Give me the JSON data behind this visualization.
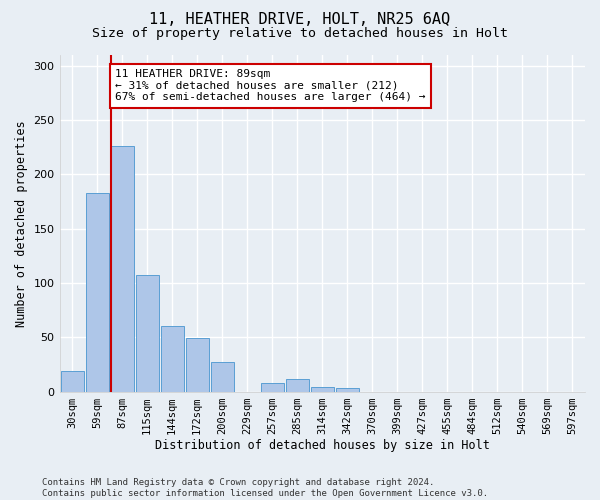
{
  "title1": "11, HEATHER DRIVE, HOLT, NR25 6AQ",
  "title2": "Size of property relative to detached houses in Holt",
  "xlabel": "Distribution of detached houses by size in Holt",
  "ylabel": "Number of detached properties",
  "bar_labels": [
    "30sqm",
    "59sqm",
    "87sqm",
    "115sqm",
    "144sqm",
    "172sqm",
    "200sqm",
    "229sqm",
    "257sqm",
    "285sqm",
    "314sqm",
    "342sqm",
    "370sqm",
    "399sqm",
    "427sqm",
    "455sqm",
    "484sqm",
    "512sqm",
    "540sqm",
    "569sqm",
    "597sqm"
  ],
  "bar_values": [
    19,
    183,
    226,
    107,
    60,
    49,
    27,
    0,
    8,
    12,
    4,
    3,
    0,
    0,
    0,
    0,
    0,
    0,
    0,
    0,
    0
  ],
  "bar_color": "#aec6e8",
  "bar_edge_color": "#5a9fd4",
  "vline_color": "#cc0000",
  "vline_pos": 1.575,
  "annotation_text": "11 HEATHER DRIVE: 89sqm\n← 31% of detached houses are smaller (212)\n67% of semi-detached houses are larger (464) →",
  "annotation_box_color": "white",
  "annotation_box_edge_color": "#cc0000",
  "annotation_fontsize": 8,
  "ylim": [
    0,
    310
  ],
  "yticks": [
    0,
    50,
    100,
    150,
    200,
    250,
    300
  ],
  "background_color": "#e8eef4",
  "grid_color": "white",
  "footer": "Contains HM Land Registry data © Crown copyright and database right 2024.\nContains public sector information licensed under the Open Government Licence v3.0.",
  "title1_fontsize": 11,
  "title2_fontsize": 9.5,
  "xlabel_fontsize": 8.5,
  "ylabel_fontsize": 8.5,
  "footer_fontsize": 6.5,
  "tick_fontsize": 7.5,
  "ytick_fontsize": 8
}
